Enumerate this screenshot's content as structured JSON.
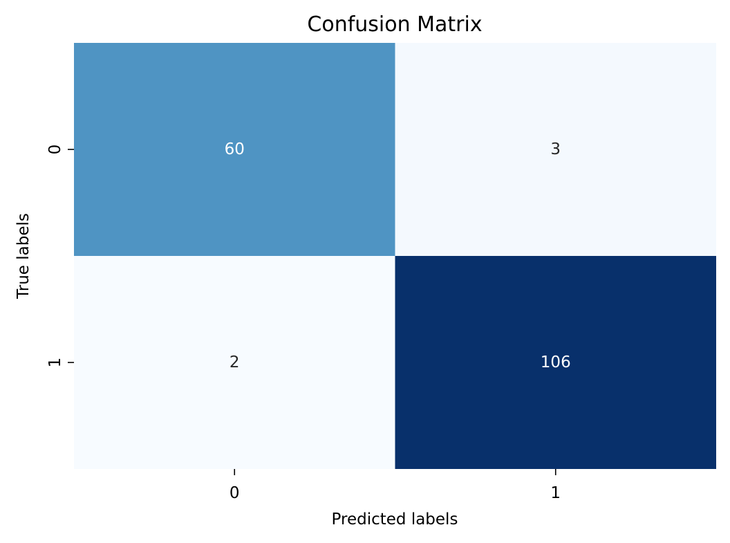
{
  "chart_data": {
    "type": "heatmap",
    "title": "Confusion Matrix",
    "xlabel": "Predicted labels",
    "ylabel": "True labels",
    "x_categories": [
      "0",
      "1"
    ],
    "y_categories": [
      "0",
      "1"
    ],
    "matrix": [
      [
        60,
        3
      ],
      [
        2,
        106
      ]
    ],
    "colormap": "Blues",
    "colors": {
      "low": "#f7fbff",
      "mid": "#58a1cf",
      "high": "#08306b",
      "text_dark": "#262626",
      "text_light": "#ffffff"
    },
    "colorbar": false,
    "grid": false
  }
}
